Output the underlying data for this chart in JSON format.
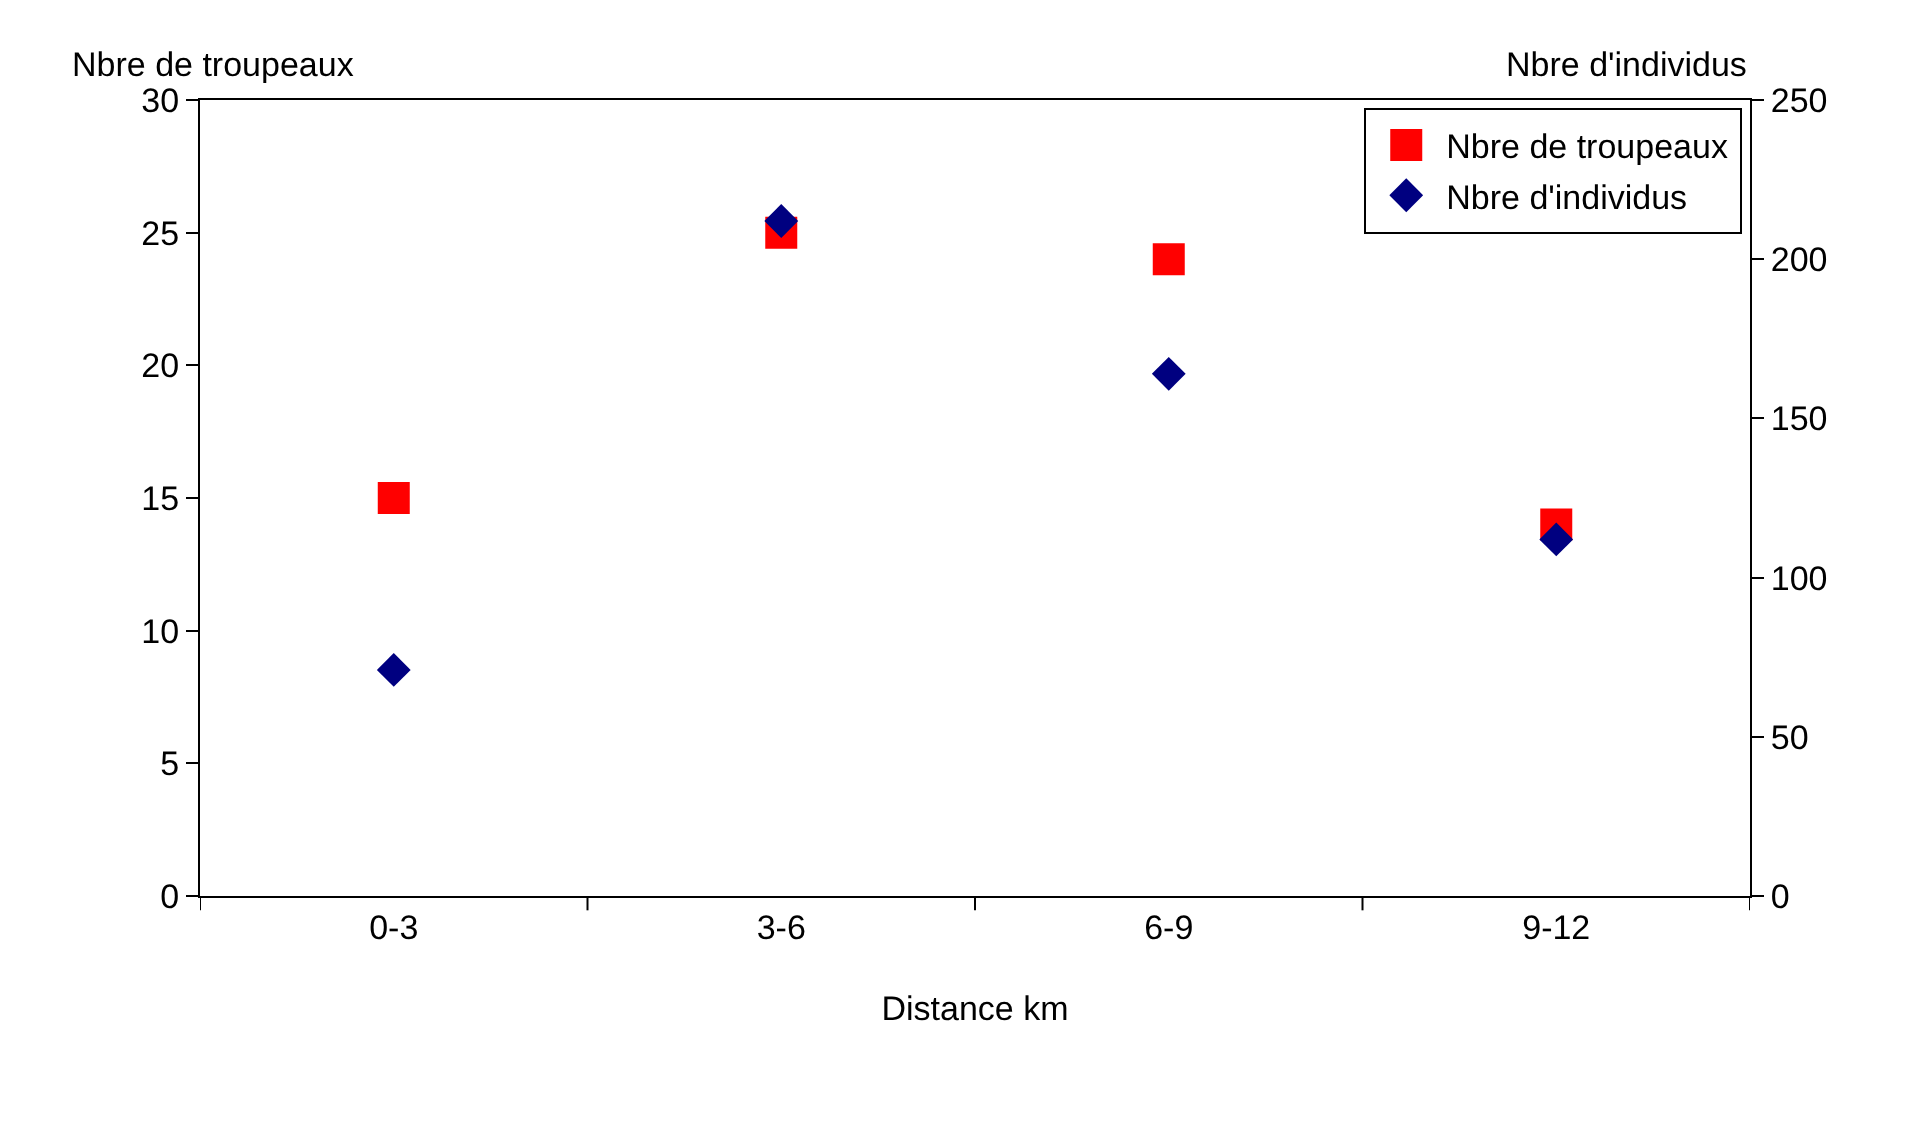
{
  "chart_data": {
    "type": "scatter",
    "xlabel": "Distance km",
    "ylabel": "Nbre de troupeaux",
    "y2label": "Nbre d'individus",
    "categories": [
      "0-3",
      "3-6",
      "6-9",
      "9-12"
    ],
    "series": [
      {
        "name": "Nbre de troupeaux",
        "color": "#ff0000",
        "marker": "square",
        "values": [
          15,
          25,
          24,
          14
        ]
      },
      {
        "name": "Nbre d'individus",
        "color": "#000080",
        "marker": "diamond",
        "axis": "y2",
        "values": [
          71,
          212,
          164,
          112
        ]
      }
    ],
    "ylim": [
      0,
      30
    ],
    "yticks": [
      0,
      5,
      10,
      15,
      20,
      25,
      30
    ],
    "y2lim": [
      0,
      250
    ],
    "y2ticks": [
      0,
      50,
      100,
      150,
      200,
      250
    ],
    "grid": false,
    "legend": "top right"
  }
}
